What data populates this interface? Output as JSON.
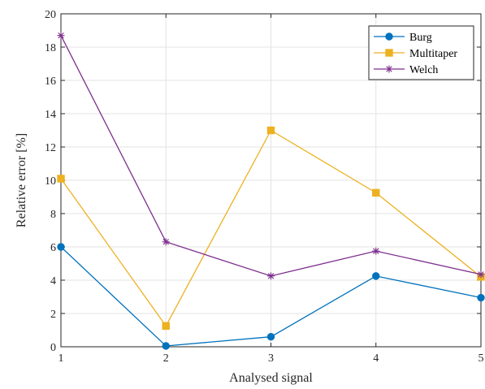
{
  "chart_data": {
    "type": "line",
    "xlabel": "Analysed signal",
    "ylabel": "Relative error [%]",
    "x": [
      1,
      2,
      3,
      4,
      5
    ],
    "xlim": [
      1,
      5
    ],
    "ylim": [
      0,
      20
    ],
    "xticks": [
      "1",
      "2",
      "3",
      "4",
      "5"
    ],
    "yticks": [
      "0",
      "2",
      "4",
      "6",
      "8",
      "10",
      "12",
      "14",
      "16",
      "18",
      "20"
    ],
    "grid": true,
    "legend": "top-right",
    "series": [
      {
        "name": "Burg",
        "marker": "circle",
        "color": "#0072BD",
        "values": [
          6.0,
          0.05,
          0.6,
          4.25,
          2.95
        ]
      },
      {
        "name": "Multitaper",
        "marker": "square",
        "color": "#EDB120",
        "values": [
          10.1,
          1.25,
          13.0,
          9.25,
          4.2
        ]
      },
      {
        "name": "Welch",
        "marker": "asterisk",
        "color": "#7E2F8E",
        "values": [
          18.7,
          6.3,
          4.25,
          5.75,
          4.35
        ]
      }
    ]
  }
}
